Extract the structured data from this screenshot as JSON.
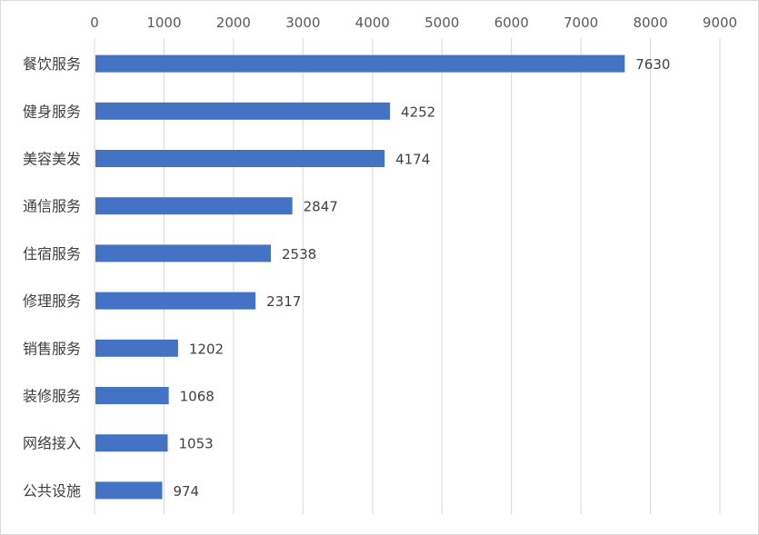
{
  "chart_data": {
    "type": "bar",
    "orientation": "horizontal",
    "categories": [
      "餐饮服务",
      "健身服务",
      "美容美发",
      "通信服务",
      "住宿服务",
      "修理服务",
      "销售服务",
      "装修服务",
      "网络接入",
      "公共设施"
    ],
    "values": [
      7630,
      4252,
      4174,
      2847,
      2538,
      2317,
      1202,
      1068,
      1053,
      974
    ],
    "xlim": [
      0,
      9000
    ],
    "x_ticks": [
      0,
      1000,
      2000,
      3000,
      4000,
      5000,
      6000,
      7000,
      8000,
      9000
    ],
    "x_axis_position": "top",
    "grid": true,
    "data_labels": true,
    "legend": "none",
    "bar_color": "#4472C4"
  }
}
